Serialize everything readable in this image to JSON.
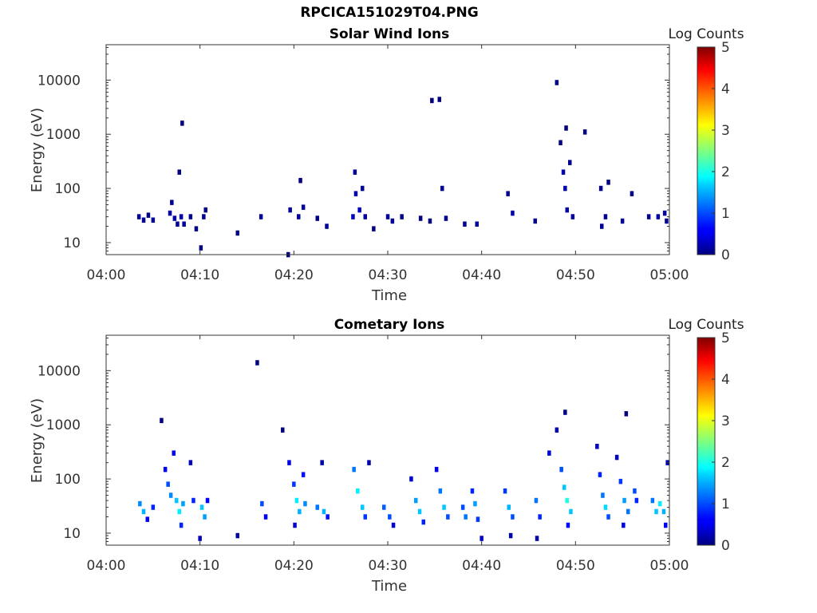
{
  "figure_title": "RPCICA151029T04.PNG",
  "chart_data": [
    {
      "type": "heatmap",
      "title": "Solar Wind Ions",
      "xlabel": "Time",
      "ylabel": "Energy (eV)",
      "x_ticks": [
        "04:00",
        "04:10",
        "04:20",
        "04:30",
        "04:40",
        "04:50",
        "05:00"
      ],
      "xlim": [
        "04:00",
        "05:00"
      ],
      "y_scale": "log",
      "y_ticks": [
        10,
        100,
        1000,
        10000
      ],
      "ylim": [
        6,
        45000
      ],
      "colorbar": {
        "label": "Log Counts",
        "ticks": [
          0,
          1,
          2,
          3,
          4,
          5
        ],
        "range": [
          0,
          5
        ],
        "colormap": "jet"
      },
      "cells": [
        [
          "04:03.5",
          30,
          0.1
        ],
        [
          "04:04.0",
          26,
          0.1
        ],
        [
          "04:04.5",
          32,
          0.0
        ],
        [
          "04:05.0",
          26,
          0.1
        ],
        [
          "04:06.8",
          35,
          0.2
        ],
        [
          "04:07.0",
          55,
          0.1
        ],
        [
          "04:07.3",
          28,
          0.2
        ],
        [
          "04:07.6",
          22,
          0.1
        ],
        [
          "04:08.0",
          30,
          0.2
        ],
        [
          "04:08.3",
          22,
          0.1
        ],
        [
          "04:07.8",
          200,
          0.0
        ],
        [
          "04:08.1",
          1600,
          0.0
        ],
        [
          "04:09.0",
          30,
          0.1
        ],
        [
          "04:09.6",
          18,
          0.0
        ],
        [
          "04:10.4",
          30,
          0.1
        ],
        [
          "04:10.6",
          40,
          0.0
        ],
        [
          "04:10.1",
          8,
          0.0
        ],
        [
          "04:14.0",
          15,
          0.0
        ],
        [
          "04:16.5",
          30,
          0.1
        ],
        [
          "04:19.4",
          6,
          0.0
        ],
        [
          "04:19.6",
          40,
          0.1
        ],
        [
          "04:20.5",
          30,
          0.1
        ],
        [
          "04:21.0",
          45,
          0.1
        ],
        [
          "04:20.7",
          140,
          0.0
        ],
        [
          "04:22.5",
          28,
          0.0
        ],
        [
          "04:23.5",
          20,
          0.1
        ],
        [
          "04:26.3",
          30,
          0.3
        ],
        [
          "04:26.6",
          80,
          0.2
        ],
        [
          "04:27.0",
          40,
          0.3
        ],
        [
          "04:26.5",
          200,
          0.1
        ],
        [
          "04:27.6",
          30,
          0.1
        ],
        [
          "04:27.3",
          100,
          0.1
        ],
        [
          "04:28.5",
          18,
          0.0
        ],
        [
          "04:30.0",
          30,
          0.1
        ],
        [
          "04:30.5",
          25,
          0.1
        ],
        [
          "04:31.5",
          30,
          0.0
        ],
        [
          "04:33.5",
          28,
          0.0
        ],
        [
          "04:34.5",
          25,
          0.0
        ],
        [
          "04:34.7",
          4200,
          0.0
        ],
        [
          "04:35.5",
          4400,
          0.0
        ],
        [
          "04:35.8",
          100,
          0.1
        ],
        [
          "04:36.2",
          28,
          0.1
        ],
        [
          "04:38.2",
          22,
          0.1
        ],
        [
          "04:39.5",
          22,
          0.1
        ],
        [
          "04:42.8",
          80,
          0.1
        ],
        [
          "04:43.3",
          35,
          0.2
        ],
        [
          "04:45.7",
          25,
          0.1
        ],
        [
          "04:48.0",
          9000,
          0.0
        ],
        [
          "04:48.4",
          700,
          0.0
        ],
        [
          "04:48.7",
          200,
          0.2
        ],
        [
          "04:48.9",
          100,
          0.2
        ],
        [
          "04:49.1",
          40,
          0.2
        ],
        [
          "04:49.4",
          300,
          0.1
        ],
        [
          "04:49.0",
          1300,
          0.0
        ],
        [
          "04:49.7",
          30,
          0.1
        ],
        [
          "04:51.0",
          1100,
          0.0
        ],
        [
          "04:52.7",
          100,
          0.1
        ],
        [
          "04:53.2",
          30,
          0.1
        ],
        [
          "04:52.8",
          20,
          0.1
        ],
        [
          "04:53.5",
          130,
          0.0
        ],
        [
          "04:55.0",
          25,
          0.1
        ],
        [
          "04:56.0",
          80,
          0.0
        ],
        [
          "04:57.8",
          30,
          0.1
        ],
        [
          "04:58.8",
          30,
          0.2
        ],
        [
          "04:59.5",
          35,
          0.2
        ],
        [
          "04:59.7",
          25,
          0.1
        ]
      ]
    },
    {
      "type": "heatmap",
      "title": "Cometary Ions",
      "xlabel": "Time",
      "ylabel": "Energy (eV)",
      "x_ticks": [
        "04:00",
        "04:10",
        "04:20",
        "04:30",
        "04:40",
        "04:50",
        "05:00"
      ],
      "xlim": [
        "04:00",
        "05:00"
      ],
      "y_scale": "log",
      "y_ticks": [
        10,
        100,
        1000,
        10000
      ],
      "ylim": [
        6,
        45000
      ],
      "colorbar": {
        "label": "Log Counts",
        "ticks": [
          0,
          1,
          2,
          3,
          4,
          5
        ],
        "range": [
          0,
          5
        ],
        "colormap": "jet"
      },
      "cells": [
        [
          "04:03.6",
          35,
          1.3
        ],
        [
          "04:04.0",
          25,
          1.5
        ],
        [
          "04:04.4",
          18,
          0.6
        ],
        [
          "04:05.0",
          30,
          0.8
        ],
        [
          "04:05.9",
          1200,
          0.0
        ],
        [
          "04:06.3",
          150,
          0.6
        ],
        [
          "04:06.6",
          80,
          1.0
        ],
        [
          "04:06.9",
          50,
          1.3
        ],
        [
          "04:07.2",
          300,
          0.5
        ],
        [
          "04:07.5",
          40,
          1.6
        ],
        [
          "04:07.8",
          25,
          1.8
        ],
        [
          "04:08.2",
          35,
          1.4
        ],
        [
          "04:08.0",
          14,
          0.8
        ],
        [
          "04:09.0",
          200,
          0.3
        ],
        [
          "04:09.3",
          40,
          0.8
        ],
        [
          "04:10.2",
          30,
          1.6
        ],
        [
          "04:10.5",
          20,
          1.4
        ],
        [
          "04:10.8",
          40,
          0.6
        ],
        [
          "04:10.0",
          8,
          0.3
        ],
        [
          "04:14.0",
          9,
          0.1
        ],
        [
          "04:16.1",
          14000,
          0.0
        ],
        [
          "04:16.6",
          35,
          1.0
        ],
        [
          "04:17.0",
          20,
          0.6
        ],
        [
          "04:18.8",
          800,
          0.0
        ],
        [
          "04:19.5",
          200,
          0.5
        ],
        [
          "04:20.0",
          80,
          0.9
        ],
        [
          "04:20.3",
          40,
          1.8
        ],
        [
          "04:20.6",
          25,
          1.5
        ],
        [
          "04:21.0",
          120,
          0.7
        ],
        [
          "04:21.2",
          35,
          1.3
        ],
        [
          "04:20.1",
          14,
          0.4
        ],
        [
          "04:22.5",
          30,
          1.2
        ],
        [
          "04:23.2",
          25,
          1.5
        ],
        [
          "04:23.6",
          20,
          0.7
        ],
        [
          "04:23.0",
          200,
          0.2
        ],
        [
          "04:26.4",
          150,
          1.2
        ],
        [
          "04:26.8",
          60,
          1.8
        ],
        [
          "04:27.3",
          30,
          1.6
        ],
        [
          "04:27.6",
          20,
          0.9
        ],
        [
          "04:28.0",
          200,
          0.2
        ],
        [
          "04:29.6",
          30,
          1.1
        ],
        [
          "04:30.2",
          20,
          1.0
        ],
        [
          "04:30.6",
          14,
          0.4
        ],
        [
          "04:32.5",
          100,
          0.4
        ],
        [
          "04:33.0",
          40,
          1.4
        ],
        [
          "04:33.4",
          25,
          1.6
        ],
        [
          "04:33.8",
          16,
          0.8
        ],
        [
          "04:35.2",
          150,
          0.6
        ],
        [
          "04:35.6",
          60,
          1.2
        ],
        [
          "04:36.0",
          30,
          1.6
        ],
        [
          "04:36.4",
          20,
          1.0
        ],
        [
          "04:38.0",
          30,
          1.0
        ],
        [
          "04:38.3",
          20,
          1.2
        ],
        [
          "04:39.0",
          60,
          0.8
        ],
        [
          "04:39.3",
          35,
          1.4
        ],
        [
          "04:39.6",
          18,
          0.9
        ],
        [
          "04:40.0",
          8,
          0.3
        ],
        [
          "04:42.5",
          60,
          0.9
        ],
        [
          "04:42.9",
          30,
          1.5
        ],
        [
          "04:43.3",
          20,
          1.0
        ],
        [
          "04:43.1",
          9,
          0.2
        ],
        [
          "04:45.8",
          40,
          1.2
        ],
        [
          "04:46.2",
          20,
          0.8
        ],
        [
          "04:45.9",
          8,
          0.2
        ],
        [
          "04:47.2",
          300,
          0.4
        ],
        [
          "04:48.0",
          800,
          0.2
        ],
        [
          "04:48.5",
          150,
          1.0
        ],
        [
          "04:48.8",
          70,
          1.6
        ],
        [
          "04:49.1",
          40,
          2.0
        ],
        [
          "04:49.5",
          25,
          1.6
        ],
        [
          "04:48.9",
          1700,
          0.0
        ],
        [
          "04:49.2",
          14,
          0.6
        ],
        [
          "04:52.3",
          400,
          0.3
        ],
        [
          "04:52.6",
          120,
          0.8
        ],
        [
          "04:52.9",
          50,
          1.2
        ],
        [
          "04:53.2",
          30,
          1.7
        ],
        [
          "04:53.5",
          20,
          1.0
        ],
        [
          "04:54.4",
          250,
          0.3
        ],
        [
          "04:54.8",
          90,
          0.9
        ],
        [
          "04:55.2",
          40,
          1.4
        ],
        [
          "04:55.6",
          25,
          1.2
        ],
        [
          "04:55.4",
          1600,
          0.0
        ],
        [
          "04:55.1",
          14,
          0.5
        ],
        [
          "04:56.3",
          60,
          1.0
        ],
        [
          "04:56.5",
          40,
          0.8
        ],
        [
          "04:58.2",
          40,
          1.2
        ],
        [
          "04:58.6",
          25,
          1.6
        ],
        [
          "04:59.0",
          35,
          1.8
        ],
        [
          "04:59.4",
          25,
          1.5
        ],
        [
          "04:59.6",
          14,
          0.6
        ],
        [
          "04:59.8",
          200,
          0.2
        ]
      ]
    }
  ]
}
